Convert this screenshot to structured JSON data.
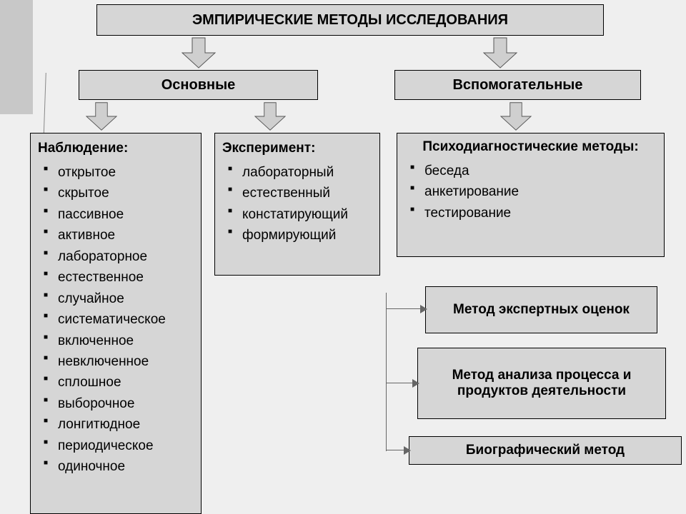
{
  "diagram": {
    "type": "flowchart",
    "background_color": "#efefef",
    "box_fill": "#d6d6d6",
    "box_border": "#000000",
    "arrow_fill": "#cfcfcf",
    "arrow_border": "#555555",
    "sidebar_gray": "#c8c8c8",
    "connector_color": "#666666",
    "title_fontsize": 20,
    "category_fontsize": 20,
    "body_fontsize": 19,
    "small_box_fontsize": 19,
    "title": "ЭМПИРИЧЕСКИЕ МЕТОДЫ ИССЛЕДОВАНИЯ",
    "categories": {
      "main": "Основные",
      "aux": "Вспомогательные"
    },
    "observation": {
      "heading": "Наблюдение:",
      "items": [
        "открытое",
        "скрытое",
        "пассивное",
        "активное",
        "лабораторное",
        "естественное",
        "случайное",
        "систематическое",
        "включенное",
        "невключенное",
        "сплошное",
        "выборочное",
        "лонгитюдное",
        "периодическое",
        "одиночное"
      ]
    },
    "experiment": {
      "heading": "Эксперимент:",
      "items": [
        "лабораторный",
        "естественный",
        "констатирующий",
        "формирующий"
      ]
    },
    "psychodiag": {
      "heading": "Психодиагностические методы:",
      "items": [
        "беседа",
        "анкетирование",
        "тестирование"
      ]
    },
    "expert_box": "Метод экспертных оценок",
    "analysis_box": "Метод анализа процесса и продуктов деятельности",
    "biographic_box": "Биографический метод"
  }
}
